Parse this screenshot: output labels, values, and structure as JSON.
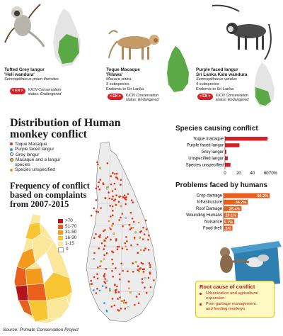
{
  "species": [
    {
      "name": "Tufted Grey langur",
      "local": "'Heli wandura'",
      "sci": "Semnopithecus priam thersites",
      "notes": [],
      "status_badge": "< EN >",
      "status_line1": "IUCN Conservation",
      "status_line2": "status: Endangered"
    },
    {
      "name": "Toque Macaque",
      "local": "'Rilawa'",
      "sci": "Macaca sinica",
      "notes": [
        "3 subspecies",
        "Endemic to Sri Lanka"
      ],
      "status_badge": "< EN >",
      "status_line1": "IUCN Conservation",
      "status_line2": "status: Endangered"
    },
    {
      "name": "Purple faced langur",
      "local": "Sri Lanka Kalu wandura",
      "sci": "Semnopithecus vetulus",
      "notes": [
        "4 subspecies",
        "Endemic to Sri Lanka"
      ],
      "status_badge": "< EN >",
      "status_line1": "IUCN Conservation",
      "status_line2": "status: Endangered"
    }
  ],
  "distribution": {
    "title_line1": "Distribution of Human",
    "title_line2": "monkey conflict",
    "legend": [
      {
        "label": "Toque Macaque",
        "color": "#e63312"
      },
      {
        "label": "Purple faced langur",
        "color": "#1aa0e0"
      },
      {
        "label": "Grey langur",
        "color": "#ffffff"
      },
      {
        "label": "Macaque and a langur",
        "label2": "species",
        "color": "#f5d400"
      },
      {
        "label": "Species unspecified",
        "color": "#f28c1e"
      }
    ]
  },
  "frequency": {
    "title_lines": [
      "Frequency of conflict",
      "based on complaints",
      "from 2007-2015"
    ],
    "scale": [
      {
        "label": ">70",
        "color": "#b3131b"
      },
      {
        "label": "51-70",
        "color": "#e8601c"
      },
      {
        "label": "31-50",
        "color": "#f39a1d"
      },
      {
        "label": "16-30",
        "color": "#f7c531"
      },
      {
        "label": "1-15",
        "color": "#fbe79a"
      },
      {
        "label": "0",
        "color": "#ffffff"
      }
    ]
  },
  "chart_data": [
    {
      "type": "bar",
      "title": "Species causing conflict",
      "orientation": "horizontal",
      "categories": [
        "Toque macaque",
        "Purple faced langur",
        "Grey langur",
        "Unspecified langur",
        "Species unspecified"
      ],
      "values": [
        62,
        21,
        2,
        4,
        8
      ],
      "xticks": [
        "0",
        "20",
        "40",
        "60",
        "70%"
      ],
      "xlim": [
        0,
        70
      ],
      "color": "#d62027"
    },
    {
      "type": "bar",
      "title": "Problems faced by humans",
      "orientation": "horizontal",
      "categories": [
        "Crop damage",
        "Infrastructure",
        "Roof Damage",
        "Wounding Humans",
        "Nuisance",
        "Food theft"
      ],
      "values": [
        65.2,
        34.2,
        25.4,
        20.1,
        15.1,
        12.6
      ],
      "data_labels": [
        "65.2%",
        "34.2%",
        "25.4%",
        "20.1%",
        "15.1%",
        "12.6%"
      ],
      "color": "#e8601c"
    }
  ],
  "root_cause": {
    "title": "Root cause of conflict",
    "items": [
      [
        "Urbanization and agricultural",
        "expansion"
      ],
      [
        "Poor garbage management",
        "and feeding monkeys"
      ]
    ]
  },
  "source": "Source: Primate Conservation Project"
}
